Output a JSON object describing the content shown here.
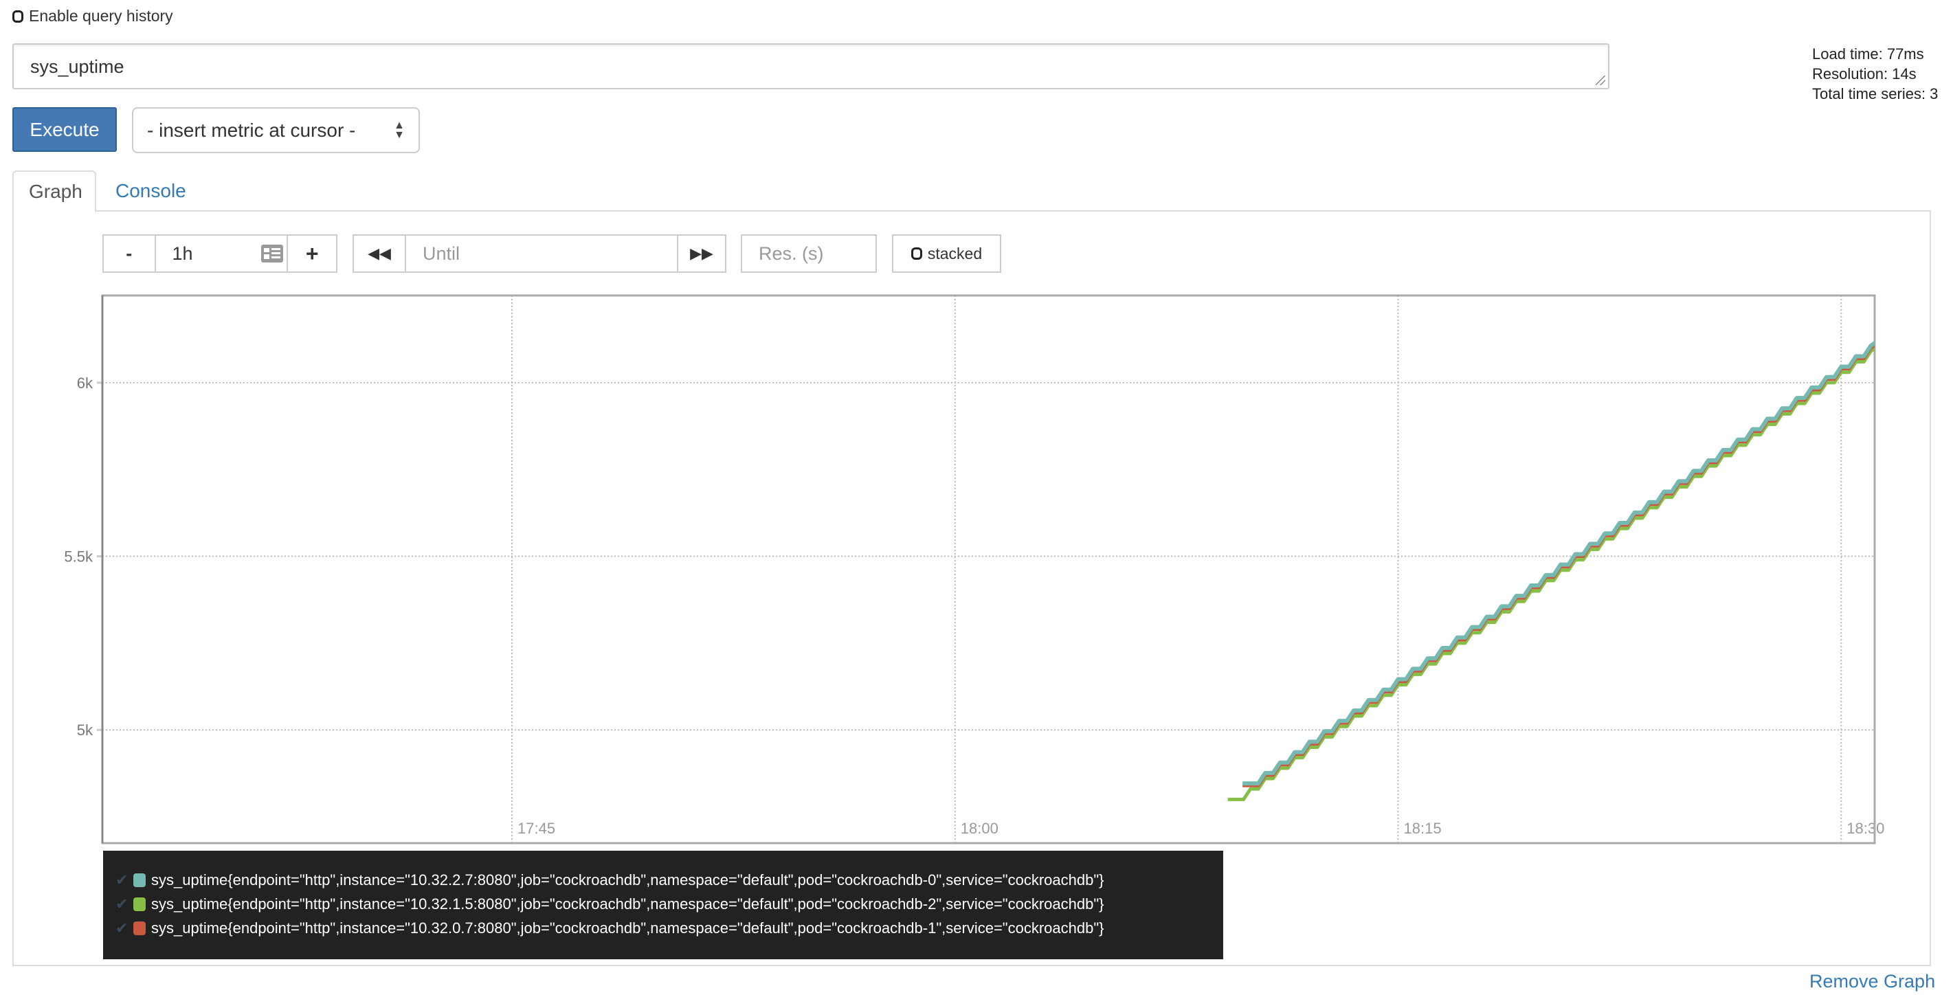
{
  "query_history": {
    "label": "Enable query history",
    "checked": false
  },
  "expression": {
    "value": "sys_uptime"
  },
  "stats": {
    "load_time": "Load time: 77ms",
    "resolution": "Resolution: 14s",
    "total_series": "Total time series: 3"
  },
  "execute_label": "Execute",
  "metric_select": {
    "selected": "- insert metric at cursor -"
  },
  "tabs": [
    {
      "label": "Graph",
      "active": true
    },
    {
      "label": "Console",
      "active": false
    }
  ],
  "controls": {
    "range_minus": "-",
    "range_value": "1h",
    "range_plus": "+",
    "until_placeholder": "Until",
    "resolution_placeholder": "Res. (s)",
    "stacked_label": "stacked"
  },
  "remove_graph": "Remove Graph",
  "chart_data": {
    "type": "line",
    "step": true,
    "grid": true,
    "xlim": [
      "17:31:08",
      "18:31:08"
    ],
    "ylim": [
      4674,
      6251
    ],
    "x_ticks": [
      "17:45",
      "18:00",
      "18:15",
      "18:30"
    ],
    "y_ticks": [
      {
        "value": 5000,
        "label": "5k"
      },
      {
        "value": 5500,
        "label": "5.5k"
      },
      {
        "value": 6000,
        "label": "6k"
      }
    ],
    "x": [
      "18:09:30",
      "18:10:00",
      "18:10:30",
      "18:11:00",
      "18:11:30",
      "18:12:00",
      "18:12:30",
      "18:13:00",
      "18:13:30",
      "18:14:00",
      "18:14:30",
      "18:15:00",
      "18:15:30",
      "18:16:00",
      "18:16:30",
      "18:17:00",
      "18:17:30",
      "18:18:00",
      "18:18:30",
      "18:19:00",
      "18:19:30",
      "18:20:00",
      "18:20:30",
      "18:21:00",
      "18:21:30",
      "18:22:00",
      "18:22:30",
      "18:23:00",
      "18:23:30",
      "18:24:00",
      "18:24:30",
      "18:25:00",
      "18:25:30",
      "18:26:00",
      "18:26:30",
      "18:27:00",
      "18:27:30",
      "18:28:00",
      "18:28:30",
      "18:29:00",
      "18:29:30",
      "18:30:00",
      "18:30:30",
      "18:31:00"
    ],
    "series": [
      {
        "name": "sys_uptime{endpoint=\"http\",instance=\"10.32.2.7:8080\",job=\"cockroachdb\",namespace=\"default\",pod=\"cockroachdb-0\",service=\"cockroachdb\"}",
        "color": "#75b9b0",
        "values": [
          null,
          4846,
          4876,
          4906,
          4936,
          4966,
          4996,
          5026,
          5056,
          5086,
          5116,
          5146,
          5176,
          5206,
          5236,
          5266,
          5296,
          5326,
          5356,
          5386,
          5416,
          5446,
          5476,
          5506,
          5536,
          5566,
          5596,
          5626,
          5656,
          5686,
          5716,
          5746,
          5776,
          5806,
          5836,
          5866,
          5896,
          5926,
          5956,
          5986,
          6016,
          6046,
          6076,
          6106
        ]
      },
      {
        "name": "sys_uptime{endpoint=\"http\",instance=\"10.32.1.5:8080\",job=\"cockroachdb\",namespace=\"default\",pod=\"cockroachdb-2\",service=\"cockroachdb\"}",
        "color": "#86bf48",
        "values": [
          4800,
          4830,
          4860,
          4890,
          4920,
          4950,
          4980,
          5010,
          5040,
          5070,
          5100,
          5130,
          5160,
          5190,
          5220,
          5250,
          5280,
          5310,
          5340,
          5370,
          5400,
          5430,
          5460,
          5490,
          5520,
          5550,
          5580,
          5610,
          5640,
          5670,
          5700,
          5730,
          5760,
          5790,
          5820,
          5850,
          5880,
          5910,
          5940,
          5970,
          6000,
          6030,
          6060,
          6090
        ]
      },
      {
        "name": "sys_uptime{endpoint=\"http\",instance=\"10.32.0.7:8080\",job=\"cockroachdb\",namespace=\"default\",pod=\"cockroachdb-1\",service=\"cockroachdb\"}",
        "color": "#c9593e",
        "values": [
          null,
          4840,
          4870,
          4900,
          4930,
          4960,
          4990,
          5020,
          5050,
          5080,
          5110,
          5140,
          5170,
          5200,
          5230,
          5260,
          5290,
          5320,
          5350,
          5380,
          5410,
          5440,
          5470,
          5500,
          5530,
          5560,
          5590,
          5620,
          5650,
          5680,
          5710,
          5740,
          5770,
          5800,
          5830,
          5860,
          5890,
          5920,
          5950,
          5980,
          6010,
          6040,
          6070,
          6100
        ]
      }
    ]
  }
}
